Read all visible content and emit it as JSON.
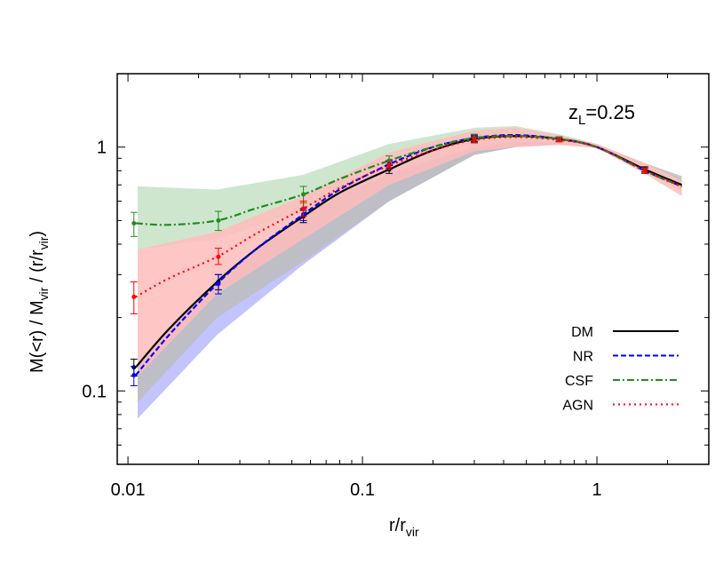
{
  "chart_data": {
    "type": "line",
    "xscale": "log",
    "yscale": "log",
    "xlim": [
      0.009,
      3
    ],
    "ylim": [
      0.05,
      2
    ],
    "grid": false,
    "xlabel": {
      "main": "r/r",
      "sub": "vir"
    },
    "ylabel": {
      "parts": [
        {
          "t": "M(<r) / M"
        },
        {
          "t": "vir",
          "sub": true
        },
        {
          "t": " / (r/r"
        },
        {
          "t": "vir",
          "sub": true
        },
        {
          "t": ")"
        }
      ]
    },
    "annotation": {
      "main": "z",
      "sub": "L",
      "rest": "=0.25"
    },
    "xticks": [
      {
        "v": 0.01,
        "label": "0.01"
      },
      {
        "v": 0.1,
        "label": "0.1"
      },
      {
        "v": 1,
        "label": "1"
      }
    ],
    "yticks": [
      {
        "v": 0.1,
        "label": "0.1"
      },
      {
        "v": 1,
        "label": "1"
      }
    ],
    "legend_placement": "bottom-right",
    "x": [
      0.0108,
      0.015,
      0.024,
      0.035,
      0.056,
      0.08,
      0.13,
      0.2,
      0.3,
      0.45,
      0.69,
      1,
      1.6,
      2.3
    ],
    "band_x": [
      0.011,
      0.024,
      0.056,
      0.13,
      0.3,
      0.45,
      0.69,
      1,
      1.6,
      2.3
    ],
    "marker_x": [
      0.0106,
      0.0243,
      0.056,
      0.13,
      0.3,
      0.69,
      1.6
    ],
    "series": [
      {
        "name": "DM",
        "color": "#000000",
        "dash": "solid",
        "band_color": "#bdbdbd",
        "values": [
          0.125,
          0.18,
          0.28,
          0.38,
          0.52,
          0.65,
          0.81,
          0.97,
          1.08,
          1.11,
          1.08,
          1.0,
          0.81,
          0.7
        ],
        "band_lower": [
          0.09,
          0.2,
          0.34,
          0.6,
          0.93,
          1.0,
          1.03,
          1.0,
          0.8,
          0.68
        ],
        "band_upper": [
          0.13,
          0.29,
          0.54,
          0.85,
          1.12,
          1.15,
          1.1,
          1.02,
          0.86,
          0.76
        ],
        "markers": [
          0.125,
          0.28,
          0.52,
          0.81,
          1.08,
          1.08,
          0.81
        ],
        "err_low": [
          0.115,
          0.26,
          0.49,
          0.78,
          1.05,
          1.06,
          0.79
        ],
        "err_high": [
          0.135,
          0.3,
          0.55,
          0.84,
          1.11,
          1.1,
          0.83
        ]
      },
      {
        "name": "NR",
        "color": "#0000ff",
        "dash": "dashed",
        "band_color": "#b8b8ff",
        "values": [
          0.116,
          0.17,
          0.275,
          0.38,
          0.53,
          0.67,
          0.85,
          1.0,
          1.09,
          1.12,
          1.08,
          1.0,
          0.8,
          0.69
        ],
        "band_lower": [
          0.077,
          0.17,
          0.33,
          0.6,
          0.93,
          1.0,
          1.03,
          1.0,
          0.8,
          0.68
        ],
        "band_upper": [
          0.12,
          0.28,
          0.54,
          0.87,
          1.13,
          1.16,
          1.1,
          1.02,
          0.85,
          0.74
        ],
        "markers": [
          0.116,
          0.275,
          0.53,
          0.85,
          1.09,
          1.08,
          0.8
        ],
        "err_low": [
          0.105,
          0.25,
          0.5,
          0.82,
          1.06,
          1.06,
          0.78
        ],
        "err_high": [
          0.126,
          0.3,
          0.56,
          0.88,
          1.12,
          1.1,
          0.82
        ]
      },
      {
        "name": "CSF",
        "color": "#228b22",
        "dash": "dashdot",
        "band_color": "#c6e2c6",
        "values": [
          0.487,
          0.48,
          0.5,
          0.56,
          0.64,
          0.74,
          0.88,
          1.0,
          1.09,
          1.11,
          1.08,
          1.0,
          0.8,
          0.69
        ],
        "band_lower": [
          0.38,
          0.42,
          0.55,
          0.78,
          1.0,
          1.05,
          1.04,
          1.0,
          0.79,
          0.66
        ],
        "band_upper": [
          0.69,
          0.67,
          0.77,
          1.03,
          1.2,
          1.22,
          1.13,
          1.03,
          0.86,
          0.73
        ],
        "markers": [
          0.487,
          0.5,
          0.64,
          0.88,
          1.09,
          1.08,
          0.8
        ],
        "err_low": [
          0.43,
          0.455,
          0.59,
          0.85,
          1.06,
          1.06,
          0.78
        ],
        "err_high": [
          0.54,
          0.545,
          0.69,
          0.92,
          1.13,
          1.1,
          0.82
        ]
      },
      {
        "name": "AGN",
        "color": "#ff0000",
        "dash": "dotted",
        "band_color": "#ffbcbc",
        "values": [
          0.243,
          0.29,
          0.355,
          0.44,
          0.56,
          0.68,
          0.84,
          0.97,
          1.07,
          1.1,
          1.07,
          1.0,
          0.8,
          0.69
        ],
        "band_lower": [
          0.115,
          0.25,
          0.42,
          0.7,
          0.96,
          1.0,
          1.02,
          0.99,
          0.78,
          0.63
        ],
        "band_upper": [
          0.38,
          0.45,
          0.63,
          0.95,
          1.17,
          1.2,
          1.12,
          1.03,
          0.86,
          0.73
        ],
        "markers": [
          0.243,
          0.355,
          0.56,
          0.84,
          1.07,
          1.07,
          0.8
        ],
        "err_low": [
          0.207,
          0.33,
          0.52,
          0.81,
          1.04,
          1.05,
          0.78
        ],
        "err_high": [
          0.28,
          0.385,
          0.6,
          0.87,
          1.1,
          1.09,
          0.82
        ]
      }
    ]
  }
}
